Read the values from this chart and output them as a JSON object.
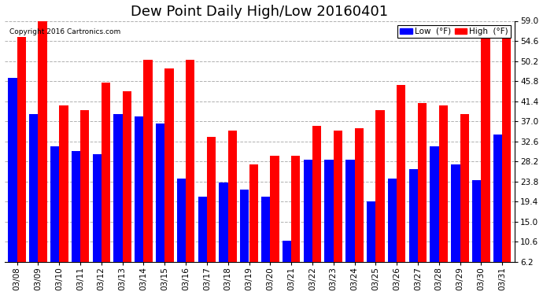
{
  "title": "Dew Point Daily High/Low 20160401",
  "copyright": "Copyright 2016 Cartronics.com",
  "ylabel_right_ticks": [
    6.2,
    10.6,
    15.0,
    19.4,
    23.8,
    28.2,
    32.6,
    37.0,
    41.4,
    45.8,
    50.2,
    54.6,
    59.0
  ],
  "dates": [
    "03/08",
    "03/09",
    "03/10",
    "03/11",
    "03/12",
    "03/13",
    "03/14",
    "03/15",
    "03/16",
    "03/17",
    "03/18",
    "03/19",
    "03/20",
    "03/21",
    "03/22",
    "03/23",
    "03/24",
    "03/25",
    "03/26",
    "03/27",
    "03/28",
    "03/29",
    "03/30",
    "03/31"
  ],
  "low_values": [
    46.5,
    38.5,
    31.5,
    30.5,
    29.8,
    38.5,
    38.0,
    36.5,
    24.5,
    20.5,
    23.5,
    22.0,
    20.5,
    10.8,
    28.5,
    28.5,
    28.5,
    19.5,
    24.5,
    26.5,
    31.5,
    27.5,
    24.0,
    34.0
  ],
  "high_values": [
    55.5,
    59.0,
    40.5,
    39.5,
    45.5,
    43.5,
    50.5,
    48.5,
    50.5,
    33.5,
    35.0,
    27.5,
    29.5,
    29.5,
    36.0,
    35.0,
    35.5,
    39.5,
    45.0,
    41.0,
    40.5,
    38.5,
    55.5,
    56.5
  ],
  "low_color": "#0000ff",
  "high_color": "#ff0000",
  "bg_color": "#ffffff",
  "plot_bg_color": "#ffffff",
  "grid_color": "#b0b0b0",
  "title_fontsize": 13,
  "bar_width": 0.42,
  "ymin": 6.2,
  "ymax": 59.0
}
